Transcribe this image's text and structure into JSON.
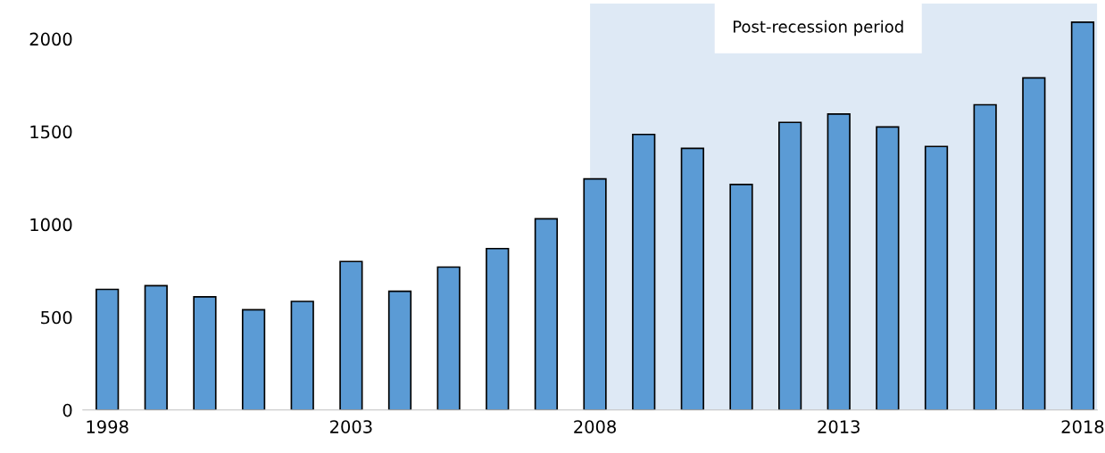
{
  "chart_data": {
    "type": "bar",
    "x": [
      1998,
      1999,
      2000,
      2001,
      2002,
      2003,
      2004,
      2005,
      2006,
      2007,
      2008,
      2009,
      2010,
      2011,
      2012,
      2013,
      2014,
      2015,
      2016,
      2017,
      2018
    ],
    "values": [
      650,
      670,
      610,
      540,
      585,
      800,
      640,
      770,
      870,
      1030,
      1245,
      1485,
      1410,
      1215,
      1550,
      1595,
      1525,
      1420,
      1645,
      1790,
      2090
    ],
    "color": "#5b9bd5",
    "xlim": [
      1997.5,
      2018.3
    ],
    "xticks": [
      1998,
      2003,
      2008,
      2013,
      2018
    ],
    "ylim": [
      0,
      2190
    ],
    "yticks": [
      0,
      500,
      1000,
      1500,
      2000
    ],
    "grid": false,
    "bands": [
      {
        "axis": "x",
        "from": 2007.9,
        "to": 2018.3,
        "label": "Post-recession period",
        "color": "#dee9f5"
      }
    ]
  }
}
